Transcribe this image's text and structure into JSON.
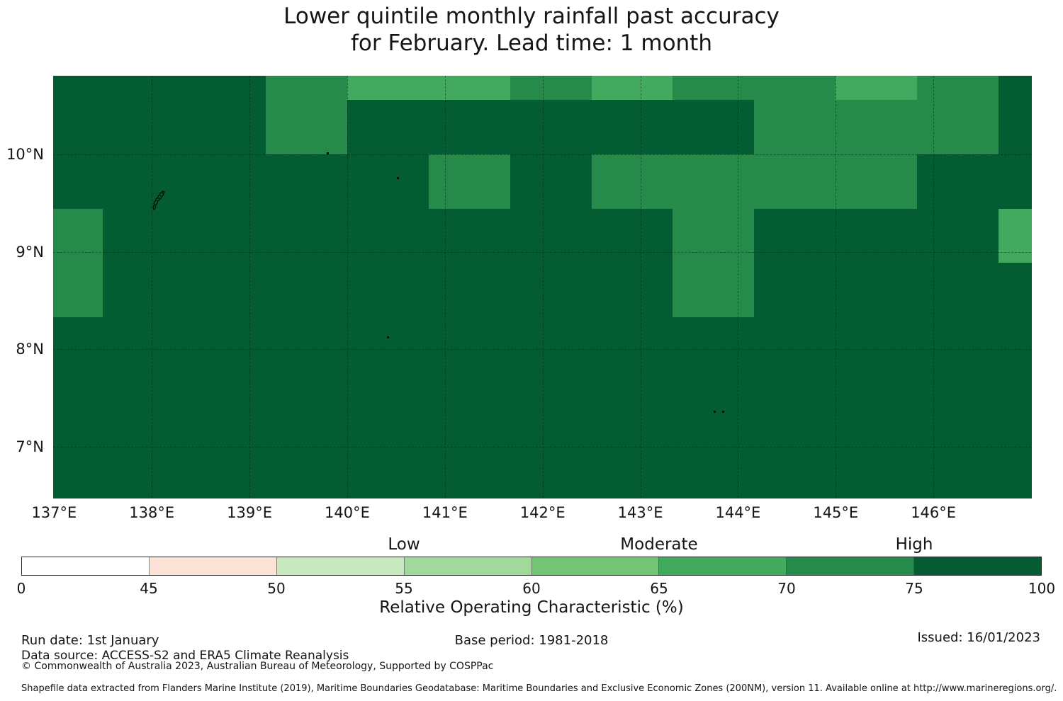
{
  "title": {
    "line1": "Lower quintile monthly rainfall past accuracy",
    "line2": "for February. Lead time: 1 month"
  },
  "chart_data": {
    "type": "heatmap",
    "title": "Lower quintile monthly rainfall past accuracy for February. Lead time: 1 month",
    "value_name": "Relative Operating Characteristic (%)",
    "lon_range": [
      136.99,
      147.0
    ],
    "lat_range": [
      6.478,
      10.806
    ],
    "lon_edges": [
      136.99,
      137.5,
      138.333,
      139.167,
      140.0,
      140.833,
      141.667,
      142.5,
      143.333,
      144.167,
      145.0,
      145.833,
      146.667,
      147.0
    ],
    "lat_edges": [
      10.806,
      10.556,
      10.0,
      9.444,
      8.889,
      8.333,
      7.778,
      7.222,
      6.667,
      6.478
    ],
    "grid_bins_roc_percent": [
      [
        "75-100",
        "75-100",
        "75-100",
        "70-75",
        "65-70",
        "65-70",
        "70-75",
        "65-70",
        "70-75",
        "70-75",
        "65-70",
        "70-75",
        "75-100"
      ],
      [
        "75-100",
        "75-100",
        "75-100",
        "70-75",
        "75-100",
        "75-100",
        "75-100",
        "75-100",
        "75-100",
        "70-75",
        "70-75",
        "70-75",
        "75-100"
      ],
      [
        "75-100",
        "75-100",
        "75-100",
        "75-100",
        "75-100",
        "70-75",
        "75-100",
        "70-75",
        "70-75",
        "70-75",
        "70-75",
        "75-100",
        "75-100"
      ],
      [
        "70-75",
        "75-100",
        "75-100",
        "75-100",
        "75-100",
        "75-100",
        "75-100",
        "75-100",
        "70-75",
        "75-100",
        "75-100",
        "75-100",
        "65-70"
      ],
      [
        "70-75",
        "75-100",
        "75-100",
        "75-100",
        "75-100",
        "75-100",
        "75-100",
        "75-100",
        "70-75",
        "75-100",
        "75-100",
        "75-100",
        "75-100"
      ],
      [
        "75-100",
        "75-100",
        "75-100",
        "75-100",
        "75-100",
        "75-100",
        "75-100",
        "75-100",
        "75-100",
        "75-100",
        "75-100",
        "75-100",
        "75-100"
      ],
      [
        "75-100",
        "75-100",
        "75-100",
        "75-100",
        "75-100",
        "75-100",
        "75-100",
        "75-100",
        "75-100",
        "75-100",
        "75-100",
        "75-100",
        "75-100"
      ],
      [
        "75-100",
        "75-100",
        "75-100",
        "75-100",
        "75-100",
        "75-100",
        "75-100",
        "75-100",
        "75-100",
        "75-100",
        "75-100",
        "75-100",
        "75-100"
      ],
      [
        "75-100",
        "75-100",
        "75-100",
        "75-100",
        "75-100",
        "75-100",
        "75-100",
        "75-100",
        "75-100",
        "75-100",
        "75-100",
        "75-100",
        "75-100"
      ]
    ],
    "x_ticks": [
      {
        "label": "137°E",
        "lon": 137
      },
      {
        "label": "138°E",
        "lon": 138
      },
      {
        "label": "139°E",
        "lon": 139
      },
      {
        "label": "140°E",
        "lon": 140
      },
      {
        "label": "141°E",
        "lon": 141
      },
      {
        "label": "142°E",
        "lon": 142
      },
      {
        "label": "143°E",
        "lon": 143
      },
      {
        "label": "144°E",
        "lon": 144
      },
      {
        "label": "145°E",
        "lon": 145
      },
      {
        "label": "146°E",
        "lon": 146
      }
    ],
    "y_ticks": [
      {
        "label": "10°N",
        "lat": 10
      },
      {
        "label": "9°N",
        "lat": 9
      },
      {
        "label": "8°N",
        "lat": 8
      },
      {
        "label": "7°N",
        "lat": 7
      }
    ],
    "gridlines": {
      "lon": [
        138,
        139,
        140,
        141,
        142,
        143,
        144,
        145,
        146
      ],
      "lat": [
        10,
        9,
        8,
        7
      ]
    },
    "islands": [
      {
        "lon": 138.06,
        "lat": 9.52,
        "kind": "outline"
      },
      {
        "lon": 139.8,
        "lat": 10.01,
        "kind": "dot"
      },
      {
        "lon": 140.52,
        "lat": 9.76,
        "kind": "dot"
      },
      {
        "lon": 140.42,
        "lat": 8.12,
        "kind": "dot"
      },
      {
        "lon": 143.76,
        "lat": 7.36,
        "kind": "dot"
      },
      {
        "lon": 143.85,
        "lat": 7.36,
        "kind": "dot"
      }
    ],
    "grid_on": true,
    "legend_position": "bottom"
  },
  "colorbar": {
    "bins": [
      {
        "range": "0-45",
        "color": "#ffffff"
      },
      {
        "range": "45-50",
        "color": "#fce3d5"
      },
      {
        "range": "50-55",
        "color": "#c7e9c0"
      },
      {
        "range": "55-60",
        "color": "#a1d99b"
      },
      {
        "range": "60-65",
        "color": "#74c476"
      },
      {
        "range": "65-70",
        "color": "#41aa5e"
      },
      {
        "range": "70-75",
        "color": "#268b4a"
      },
      {
        "range": "75-100",
        "color": "#045c33"
      }
    ],
    "tick_labels": [
      "0",
      "45",
      "50",
      "55",
      "60",
      "65",
      "70",
      "75",
      "100"
    ],
    "category_labels": [
      {
        "text": "Low",
        "tick_index": 3
      },
      {
        "text": "Moderate",
        "tick_index": 5
      },
      {
        "text": "High",
        "tick_index": 7
      }
    ],
    "axis_label": "Relative Operating Characteristic (%)"
  },
  "footer": {
    "run_date": "Run date: 1st January",
    "base_period": "Base period: 1981-2018",
    "issued": "Issued: 16/01/2023",
    "data_source": "Data source: ACCESS-S2 and ERA5 Climate Reanalysis",
    "copyright": "© Commonwealth of Australia 2023, Australian Bureau of Meteorology, Supported by COSPPac",
    "shapefile_note": "Shapefile data extracted from Flanders Marine Institute (2019), Maritime Boundaries Geodatabase: Maritime Boundaries and Exclusive Economic Zones (200NM), version 11. Available online at http://www.marineregions.org/."
  }
}
